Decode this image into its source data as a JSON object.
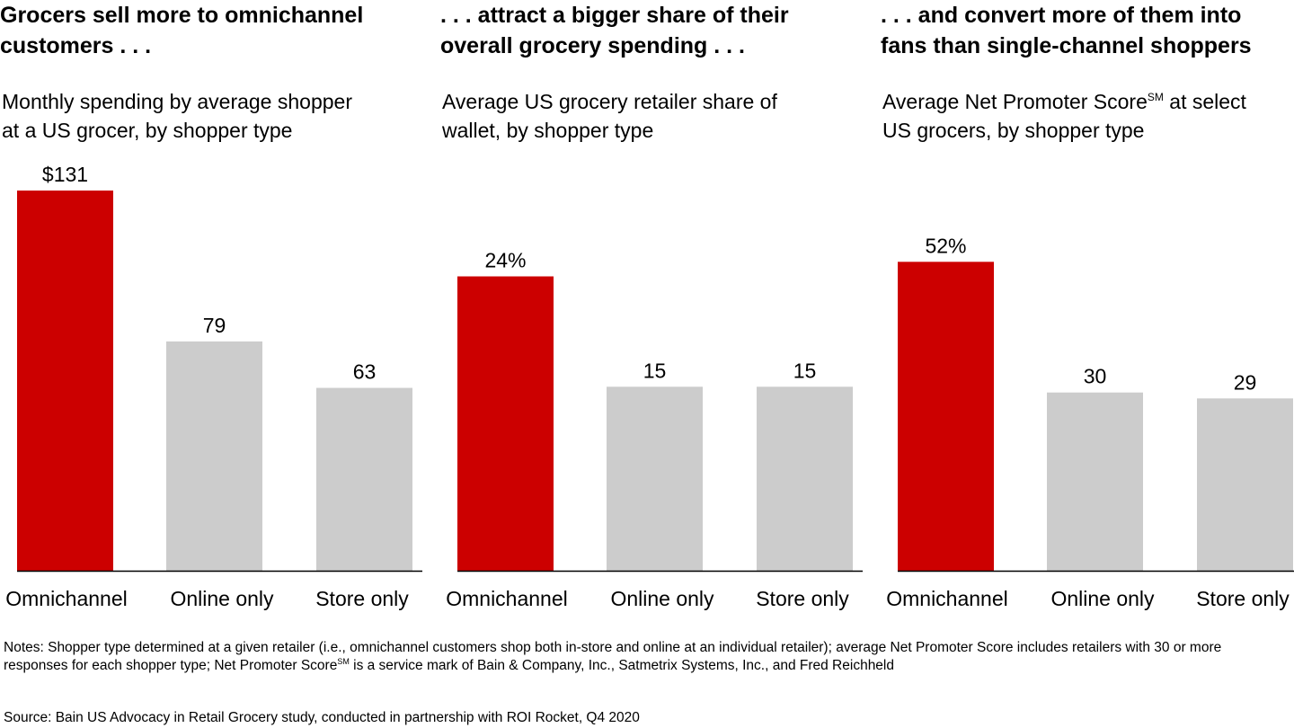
{
  "panels": [
    {
      "title_line1": "Grocers sell more to omnichannel",
      "title_line2": "customers . . .",
      "subtitle_line1": "Monthly spending by average shopper",
      "subtitle_line2": "at a US grocer, by shopper type"
    },
    {
      "title_line1": ". . . attract a bigger share of their",
      "title_line2": "overall grocery spending . . .",
      "subtitle_line1": "Average US grocery retailer share of",
      "subtitle_line2": "wallet, by shopper type"
    },
    {
      "title_line1": ". . . and convert more of them into",
      "title_line2": "fans than single-channel shoppers",
      "subtitle_line1_pre": "Average Net Promoter Score",
      "subtitle_line1_sup": "SM",
      "subtitle_line1_post": " at select",
      "subtitle_line2": "US grocers, by shopper type"
    }
  ],
  "chart_data": [
    {
      "type": "bar",
      "categories": [
        "Omnichannel",
        "Online only",
        "Store only"
      ],
      "values": [
        131,
        79,
        63
      ],
      "value_labels": [
        "$131",
        "79",
        "63"
      ],
      "ylim": [
        0,
        131
      ],
      "bar_colors": [
        "#cc0000",
        "#cccccc",
        "#cccccc"
      ]
    },
    {
      "type": "bar",
      "categories": [
        "Omnichannel",
        "Online only",
        "Store only"
      ],
      "values": [
        24,
        15,
        15
      ],
      "value_labels": [
        "24%",
        "15",
        "15"
      ],
      "ylim": [
        0,
        31
      ],
      "bar_colors": [
        "#cc0000",
        "#cccccc",
        "#cccccc"
      ]
    },
    {
      "type": "bar",
      "categories": [
        "Omnichannel",
        "Online only",
        "Store only"
      ],
      "values": [
        52,
        30,
        29
      ],
      "value_labels": [
        "52%",
        "30",
        "29"
      ],
      "ylim": [
        0,
        64
      ],
      "bar_colors": [
        "#cc0000",
        "#cccccc",
        "#cccccc"
      ]
    }
  ],
  "footer": {
    "notes_pre": "Notes: Shopper type determined at a given retailer (i.e., omnichannel customers shop both in-store and online at an individual retailer); average Net Promoter Score includes retailers with 30 or more responses for each shopper type; Net Promoter Score",
    "notes_sup": "SM",
    "notes_post": " is a service mark of Bain & Company, Inc., Satmetrix Systems, Inc., and Fred Reichheld",
    "source": "Source: Bain US Advocacy in Retail Grocery study, conducted in partnership with ROI Rocket, Q4 2020"
  }
}
